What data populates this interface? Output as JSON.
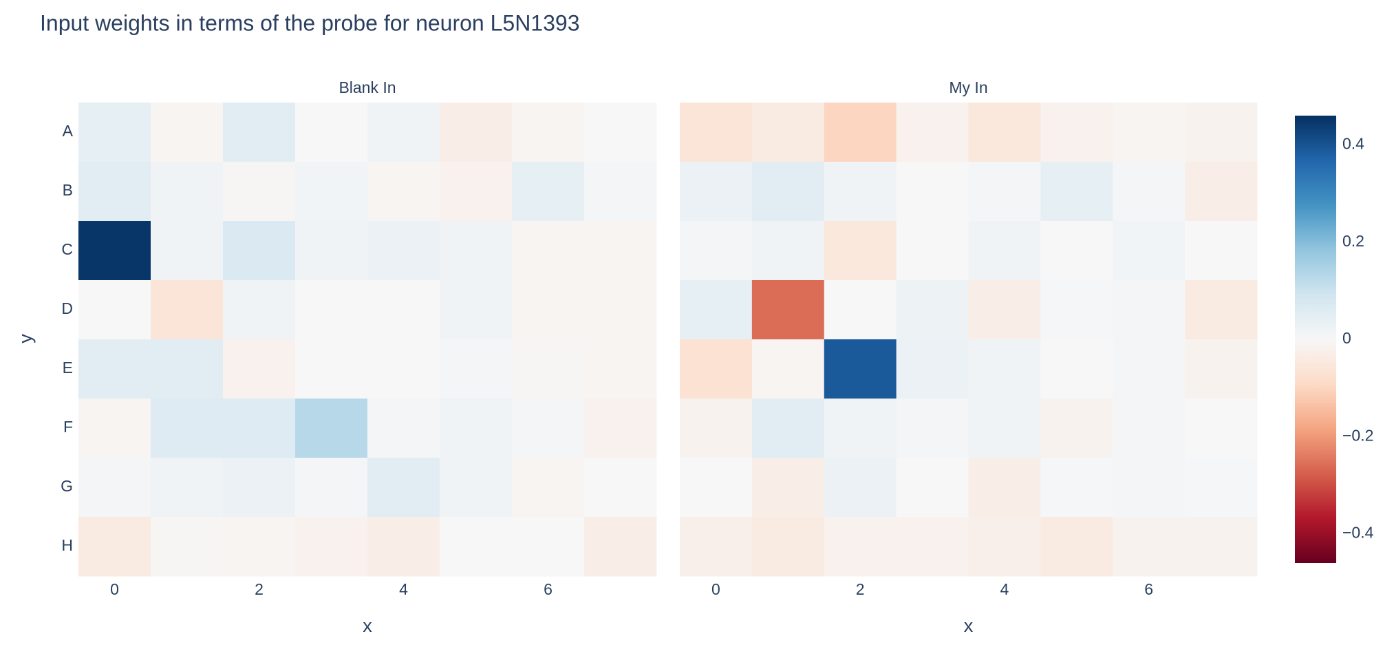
{
  "chart_data": {
    "type": "heatmap",
    "title": "Input weights in terms of the probe for neuron L5N1393",
    "colorscale": "RdBu",
    "zlim": [
      -0.46,
      0.46
    ],
    "colorbar_ticks": [
      {
        "value": -0.4,
        "label": "−0.4"
      },
      {
        "value": -0.2,
        "label": "−0.2"
      },
      0,
      0.2,
      0.4
    ],
    "subplots": [
      {
        "title": "Blank In",
        "x_label": "x",
        "y_label": "y",
        "x": [
          0,
          1,
          2,
          3,
          4,
          5,
          6,
          7
        ],
        "y": [
          "A",
          "B",
          "C",
          "D",
          "E",
          "F",
          "G",
          "H"
        ],
        "xlim": [
          -0.5,
          7.5
        ],
        "xticks": [
          0,
          2,
          4,
          6
        ],
        "values": [
          [
            0.04,
            -0.01,
            0.05,
            0.0,
            0.02,
            -0.03,
            -0.01,
            0.0
          ],
          [
            0.05,
            0.02,
            -0.005,
            0.015,
            -0.01,
            -0.02,
            0.04,
            0.01
          ],
          [
            0.45,
            0.02,
            0.07,
            0.02,
            0.03,
            0.02,
            -0.01,
            -0.01
          ],
          [
            0.0,
            -0.06,
            0.02,
            0.0,
            0.0,
            0.02,
            -0.01,
            -0.01
          ],
          [
            0.05,
            0.05,
            -0.02,
            0.0,
            0.0,
            0.01,
            -0.005,
            -0.01
          ],
          [
            -0.01,
            0.06,
            0.06,
            0.13,
            0.01,
            0.02,
            0.01,
            -0.02
          ],
          [
            0.01,
            0.02,
            0.03,
            0.01,
            0.05,
            0.02,
            -0.01,
            0.0
          ],
          [
            -0.04,
            -0.005,
            -0.01,
            -0.02,
            -0.03,
            0.0,
            0.0,
            -0.03
          ]
        ]
      },
      {
        "title": "My In",
        "x_label": "x",
        "x": [
          0,
          1,
          2,
          3,
          4,
          5,
          6,
          7
        ],
        "y": [
          "A",
          "B",
          "C",
          "D",
          "E",
          "F",
          "G",
          "H"
        ],
        "xlim": [
          -0.5,
          7.5
        ],
        "xticks": [
          0,
          2,
          4,
          6
        ],
        "values": [
          [
            -0.06,
            -0.04,
            -0.1,
            -0.02,
            -0.05,
            -0.02,
            -0.01,
            -0.015
          ],
          [
            0.03,
            0.05,
            0.02,
            0.0,
            0.01,
            0.04,
            0.01,
            -0.03
          ],
          [
            0.01,
            0.02,
            -0.05,
            0.0,
            0.02,
            0.0,
            0.015,
            0.0
          ],
          [
            0.04,
            -0.26,
            0.0,
            0.025,
            -0.03,
            0.005,
            0.01,
            -0.04
          ],
          [
            -0.07,
            -0.01,
            0.39,
            0.03,
            0.02,
            0.0,
            0.01,
            -0.015
          ],
          [
            -0.015,
            0.05,
            0.02,
            0.01,
            0.02,
            -0.015,
            0.01,
            0.0
          ],
          [
            0.0,
            -0.03,
            0.03,
            0.0,
            -0.03,
            0.005,
            0.01,
            0.005
          ],
          [
            -0.025,
            -0.04,
            -0.02,
            -0.02,
            -0.025,
            -0.04,
            -0.015,
            -0.015
          ]
        ]
      }
    ]
  }
}
